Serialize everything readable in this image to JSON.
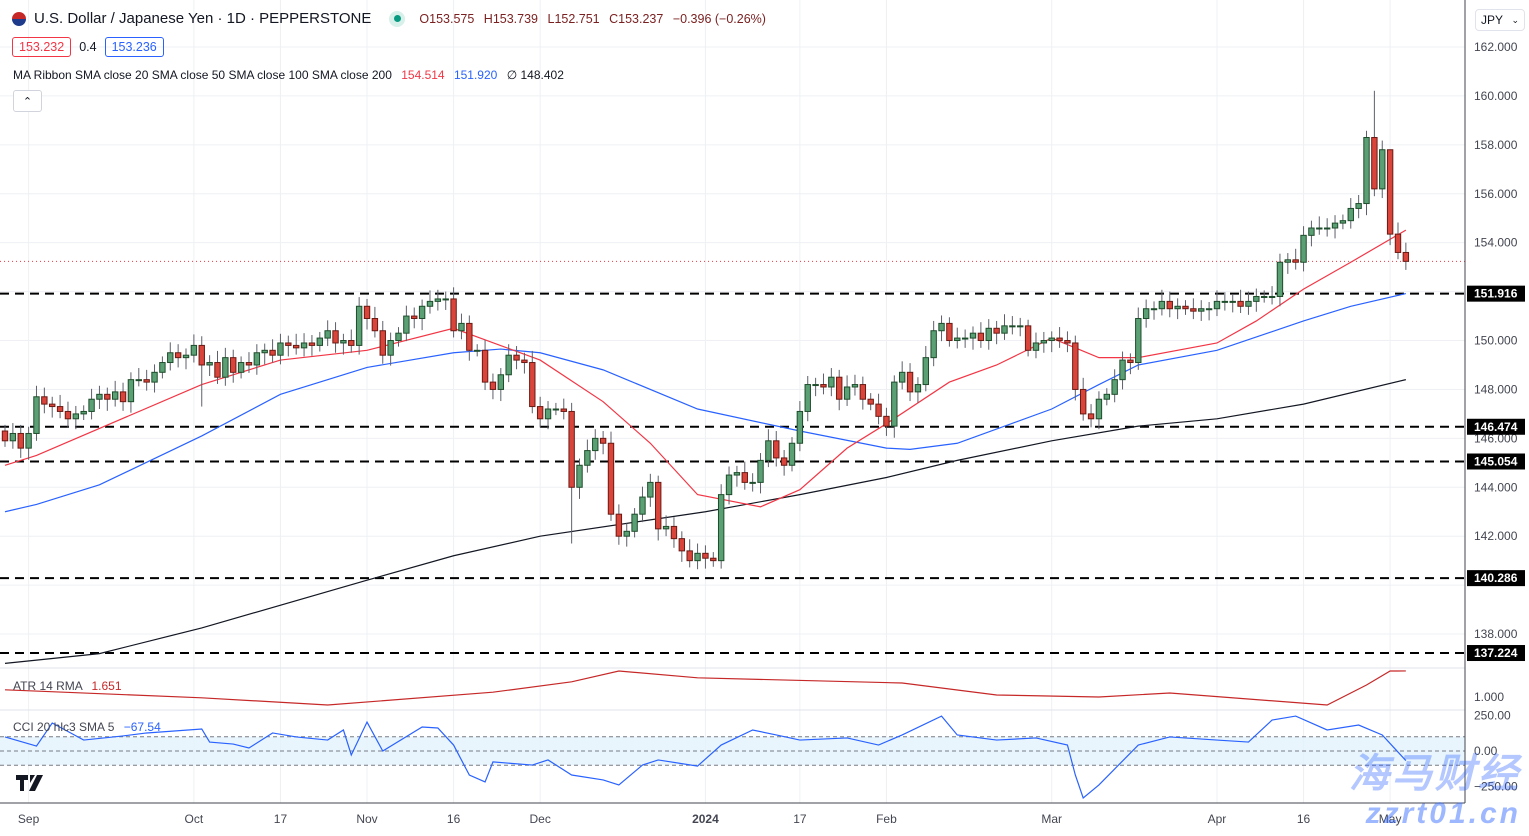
{
  "header": {
    "symbol_title": "U.S. Dollar / Japanese Yen · 1D · PEPPERSTONE",
    "open": "O153.575",
    "high": "H153.739",
    "low": "L152.751",
    "close": "C153.237",
    "change": "−0.396 (−0.26%)",
    "bid": "153.232",
    "spread": "0.4",
    "ask": "153.236",
    "currency": "JPY"
  },
  "indicators": {
    "ma_ribbon": {
      "label": "MA Ribbon SMA close 20 SMA close 50 SMA close 100 SMA close 200",
      "v20": "154.514",
      "v50": "151.920",
      "v100": "∅",
      "v200": "148.402"
    },
    "atr": {
      "label": "ATR 14 RMA",
      "value": "1.651"
    },
    "cci": {
      "label": "CCI 20 hlc3 SMA 5",
      "value": "−67.54"
    }
  },
  "watermark": {
    "line1": "海马财经",
    "line2": "zzrt01.cn"
  },
  "colors": {
    "up": "#5b9f75",
    "up_border": "#1e4d2b",
    "down": "#d9453a",
    "down_border": "#6b1a14",
    "sma20": "#f23645",
    "sma50": "#2962ff",
    "sma200": "#131722",
    "atr": "#c62828",
    "cci": "#2962ff",
    "level": "#000000",
    "last_price": "#f23645"
  },
  "chart_data": {
    "type": "candlestick",
    "title": "U.S. Dollar / Japanese Yen · 1D · PEPPERSTONE",
    "x_tick_labels": [
      "Sep",
      "Oct",
      "17",
      "Nov",
      "16",
      "Dec",
      "2024",
      "17",
      "Feb",
      "Mar",
      "Apr",
      "16",
      "May"
    ],
    "y_tick_labels": [
      "162.000",
      "160.000",
      "158.000",
      "156.000",
      "154.000",
      "150.000",
      "148.000",
      "146.000",
      "144.000",
      "142.000",
      "138.000"
    ],
    "ylim": [
      136.5,
      162.5
    ],
    "grid": true,
    "last_price": 153.237,
    "closes": [
      145.9,
      146.2,
      145.6,
      146.2,
      147.7,
      147.4,
      147.3,
      147.1,
      146.8,
      147.0,
      147.1,
      147.6,
      147.8,
      147.6,
      147.9,
      147.5,
      148.4,
      148.4,
      148.3,
      148.7,
      149.1,
      149.5,
      149.3,
      149.4,
      149.8,
      149.0,
      149.1,
      148.5,
      149.3,
      148.7,
      149.1,
      149.0,
      149.5,
      149.6,
      149.4,
      149.9,
      149.8,
      149.7,
      149.9,
      149.8,
      150.1,
      150.4,
      149.9,
      150.0,
      149.8,
      151.4,
      150.9,
      150.4,
      149.4,
      150.0,
      150.3,
      151.0,
      150.9,
      151.4,
      151.6,
      151.7,
      151.7,
      150.4,
      150.7,
      149.6,
      149.6,
      148.3,
      148.0,
      148.6,
      149.4,
      149.2,
      149.1,
      147.3,
      146.8,
      147.2,
      147.2,
      147.1,
      144.0,
      144.9,
      145.5,
      146.0,
      145.8,
      142.9,
      142.0,
      142.2,
      142.9,
      143.6,
      144.2,
      142.3,
      142.4,
      141.9,
      141.4,
      141.0,
      141.3,
      141.1,
      141.0,
      143.7,
      144.5,
      144.6,
      144.2,
      144.2,
      145.1,
      145.9,
      145.2,
      144.9,
      145.8,
      147.1,
      148.2,
      148.2,
      148.1,
      148.5,
      147.6,
      148.1,
      148.2,
      147.6,
      147.4,
      146.9,
      146.5,
      148.3,
      148.7,
      147.9,
      148.2,
      149.3,
      150.4,
      150.7,
      150.0,
      150.1,
      150.1,
      150.3,
      150.0,
      150.5,
      150.3,
      150.6,
      150.6,
      150.6,
      149.6,
      149.9,
      150.0,
      150.1,
      150.0,
      149.9,
      148.0,
      147.0,
      146.8,
      147.6,
      147.8,
      148.4,
      149.2,
      149.1,
      150.9,
      151.3,
      151.3,
      151.6,
      151.3,
      151.4,
      151.3,
      151.2,
      151.3,
      151.3,
      151.6,
      151.6,
      151.6,
      151.4,
      151.6,
      151.8,
      151.8,
      151.8,
      153.2,
      153.3,
      153.2,
      154.3,
      154.6,
      154.6,
      154.6,
      154.8,
      154.9,
      155.4,
      155.6,
      158.3,
      156.2,
      157.8,
      154.35,
      153.6,
      153.237
    ],
    "wick_extremes": {
      "2024-04-29": {
        "high": 160.21
      },
      "2023-10-03": {
        "low": 147.3
      },
      "2023-12-07": {
        "low": 141.7
      },
      "2024-05-01": {
        "high": 156.3
      }
    },
    "levels": [
      151.916,
      146.474,
      145.054,
      140.286,
      137.224
    ],
    "sma20": [
      [
        "2023-08-29",
        144.9
      ],
      [
        "2023-09-04",
        145.3
      ],
      [
        "2023-10-03",
        148.2
      ],
      [
        "2023-10-17",
        149.2
      ],
      [
        "2023-11-01",
        149.6
      ],
      [
        "2023-11-16",
        150.5
      ],
      [
        "2023-12-01",
        149.2
      ],
      [
        "2023-12-13",
        147.5
      ],
      [
        "2023-12-21",
        145.8
      ],
      [
        "2023-12-29",
        143.7
      ],
      [
        "2024-01-10",
        143.2
      ],
      [
        "2024-01-17",
        143.9
      ],
      [
        "2024-01-25",
        145.6
      ],
      [
        "2024-02-01",
        146.6
      ],
      [
        "2024-02-13",
        148.3
      ],
      [
        "2024-02-21",
        149.0
      ],
      [
        "2024-03-01",
        150.1
      ],
      [
        "2024-03-11",
        149.3
      ],
      [
        "2024-03-18",
        149.3
      ],
      [
        "2024-04-01",
        149.9
      ],
      [
        "2024-04-08",
        150.8
      ],
      [
        "2024-04-16",
        152.1
      ],
      [
        "2024-04-24",
        153.2
      ],
      [
        "2024-05-03",
        154.514
      ]
    ],
    "sma50": [
      [
        "2023-08-29",
        143.0
      ],
      [
        "2023-09-04",
        143.3
      ],
      [
        "2023-09-14",
        144.1
      ],
      [
        "2023-10-03",
        146.1
      ],
      [
        "2023-10-17",
        147.8
      ],
      [
        "2023-11-01",
        148.9
      ],
      [
        "2023-11-16",
        149.5
      ],
      [
        "2023-11-24",
        149.65
      ],
      [
        "2023-12-01",
        149.5
      ],
      [
        "2023-12-13",
        148.8
      ],
      [
        "2023-12-29",
        147.2
      ],
      [
        "2024-01-17",
        146.3
      ],
      [
        "2024-02-01",
        145.6
      ],
      [
        "2024-02-06",
        145.55
      ],
      [
        "2024-02-14",
        145.8
      ],
      [
        "2024-03-01",
        147.2
      ],
      [
        "2024-03-11",
        148.2
      ],
      [
        "2024-03-18",
        149.0
      ],
      [
        "2024-04-01",
        149.6
      ],
      [
        "2024-04-16",
        150.8
      ],
      [
        "2024-04-24",
        151.4
      ],
      [
        "2024-05-03",
        151.92
      ]
    ],
    "sma200": [
      [
        "2023-08-29",
        136.8
      ],
      [
        "2023-09-14",
        137.2
      ],
      [
        "2023-10-03",
        138.25
      ],
      [
        "2023-11-01",
        140.2
      ],
      [
        "2023-11-16",
        141.2
      ],
      [
        "2023-12-01",
        142.0
      ],
      [
        "2024-01-01",
        143.0
      ],
      [
        "2024-01-17",
        143.7
      ],
      [
        "2024-02-01",
        144.4
      ],
      [
        "2024-02-14",
        145.1
      ],
      [
        "2024-03-01",
        145.9
      ],
      [
        "2024-03-18",
        146.5
      ],
      [
        "2024-04-01",
        146.8
      ],
      [
        "2024-04-16",
        147.4
      ],
      [
        "2024-05-03",
        148.402
      ]
    ],
    "atr": {
      "y_tick_labels": [
        "1.000"
      ],
      "points": [
        [
          "2023-08-29",
          1.18
        ],
        [
          "2023-10-03",
          0.98
        ],
        [
          "2023-10-25",
          0.8
        ],
        [
          "2023-11-23",
          1.12
        ],
        [
          "2023-12-07",
          1.38
        ],
        [
          "2023-12-15",
          1.65
        ],
        [
          "2023-12-29",
          1.48
        ],
        [
          "2024-02-05",
          1.35
        ],
        [
          "2024-02-21",
          1.05
        ],
        [
          "2024-03-11",
          1.0
        ],
        [
          "2024-03-22",
          1.1
        ],
        [
          "2024-04-19",
          0.8
        ],
        [
          "2024-04-26",
          1.3
        ],
        [
          "2024-05-01",
          1.65
        ],
        [
          "2024-05-03",
          1.651
        ]
      ]
    },
    "cci": {
      "y_tick_labels": [
        "250.00",
        "0.00",
        "−250.00"
      ],
      "bands": [
        100,
        0,
        -100
      ],
      "points": [
        [
          "2023-08-29",
          99
        ],
        [
          "2023-09-04",
          35
        ],
        [
          "2023-09-06",
          197
        ],
        [
          "2023-09-12",
          77
        ],
        [
          "2023-09-19",
          106
        ],
        [
          "2023-09-22",
          127
        ],
        [
          "2023-10-03",
          155
        ],
        [
          "2023-10-04",
          63
        ],
        [
          "2023-10-09",
          49
        ],
        [
          "2023-10-11",
          21
        ],
        [
          "2023-10-16",
          127
        ],
        [
          "2023-10-19",
          99
        ],
        [
          "2023-10-25",
          77
        ],
        [
          "2023-10-27",
          148
        ],
        [
          "2023-10-30",
          -28
        ],
        [
          "2023-11-01",
          204
        ],
        [
          "2023-11-03",
          0
        ],
        [
          "2023-11-10",
          169
        ],
        [
          "2023-11-14",
          162
        ],
        [
          "2023-11-16",
          42
        ],
        [
          "2023-11-20",
          -169
        ],
        [
          "2023-11-22",
          -218
        ],
        [
          "2023-11-23",
          -77
        ],
        [
          "2023-11-30",
          -99
        ],
        [
          "2023-12-04",
          -63
        ],
        [
          "2023-12-07",
          -169
        ],
        [
          "2023-12-13",
          -204
        ],
        [
          "2023-12-15",
          -239
        ],
        [
          "2023-12-20",
          -99
        ],
        [
          "2023-12-22",
          -63
        ],
        [
          "2023-12-29",
          -106
        ],
        [
          "2024-01-03",
          42
        ],
        [
          "2024-01-09",
          148
        ],
        [
          "2024-01-12",
          113
        ],
        [
          "2024-01-17",
          77
        ],
        [
          "2024-01-25",
          92
        ],
        [
          "2024-01-31",
          42
        ],
        [
          "2024-02-05",
          113
        ],
        [
          "2024-02-12",
          246
        ],
        [
          "2024-02-14",
          113
        ],
        [
          "2024-02-21",
          77
        ],
        [
          "2024-02-28",
          92
        ],
        [
          "2024-03-05",
          42
        ],
        [
          "2024-03-06",
          -169
        ],
        [
          "2024-03-07",
          -331
        ],
        [
          "2024-03-11",
          -239
        ],
        [
          "2024-03-18",
          42
        ],
        [
          "2024-03-22",
          99
        ],
        [
          "2024-04-01",
          77
        ],
        [
          "2024-04-05",
          63
        ],
        [
          "2024-04-10",
          218
        ],
        [
          "2024-04-15",
          246
        ],
        [
          "2024-04-19",
          148
        ],
        [
          "2024-04-25",
          183
        ],
        [
          "2024-04-30",
          113
        ],
        [
          "2024-05-03",
          -67.54
        ]
      ]
    }
  }
}
